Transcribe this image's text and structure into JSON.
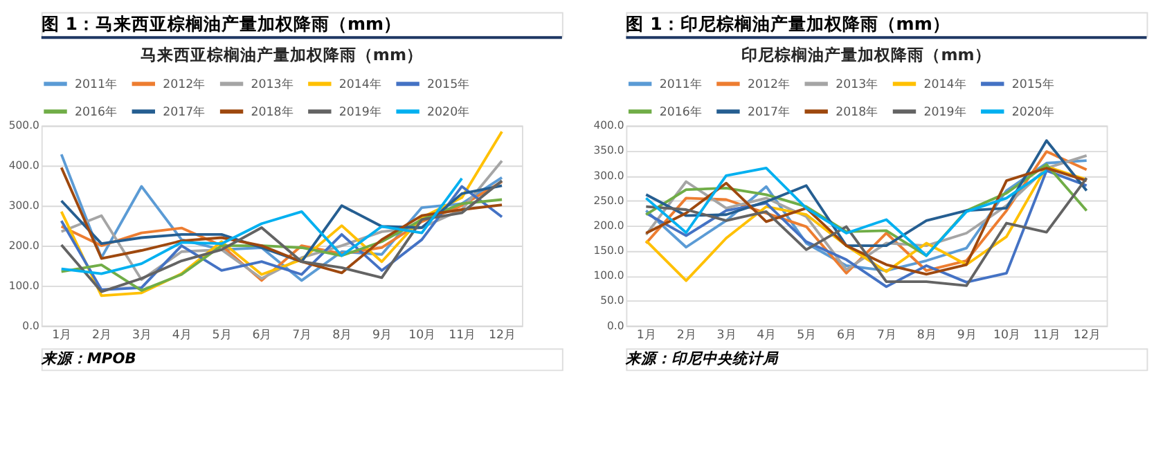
{
  "chart_data": [
    {
      "type": "line",
      "title": "图 1：马来西亚棕榈油产量加权降雨（mm）",
      "subtitle": "马来西亚棕榈油产量加权降雨（mm）",
      "categories": [
        "1月",
        "2月",
        "3月",
        "4月",
        "5月",
        "6月",
        "7月",
        "8月",
        "9月",
        "10月",
        "11月",
        "12月"
      ],
      "ylim": [
        0,
        500
      ],
      "yticks": [
        {
          "value": 0,
          "label": "0.0"
        },
        {
          "value": 100,
          "label": "100.0"
        },
        {
          "value": 200,
          "label": "200.0"
        },
        {
          "value": 300,
          "label": "300.0"
        },
        {
          "value": 400,
          "label": "400.0"
        },
        {
          "value": 500,
          "label": "500.0"
        }
      ],
      "grid": "y",
      "legend": "top",
      "annotations": [
        "来源：MPOB"
      ],
      "series": [
        {
          "name": "2011年",
          "color": "#5b9bd5",
          "values": [
            428,
            170,
            348,
            215,
            190,
            195,
            113,
            185,
            178,
            295,
            305,
            370
          ]
        },
        {
          "name": "2012年",
          "color": "#ed7d31",
          "values": [
            248,
            200,
            232,
            244,
            200,
            113,
            200,
            180,
            195,
            260,
            300,
            360
          ]
        },
        {
          "name": "2013年",
          "color": "#a5a5a5",
          "values": [
            235,
            275,
            115,
            185,
            190,
            118,
            170,
            200,
            235,
            245,
            290,
            412
          ]
        },
        {
          "name": "2014年",
          "color": "#ffc000",
          "values": [
            285,
            75,
            82,
            130,
            210,
            128,
            165,
            250,
            160,
            270,
            320,
            485
          ]
        },
        {
          "name": "2015年",
          "color": "#4472c4",
          "values": [
            262,
            90,
            95,
            200,
            138,
            160,
            128,
            228,
            138,
            215,
            348,
            272
          ]
        },
        {
          "name": "2016年",
          "color": "#70ad47",
          "values": [
            135,
            152,
            88,
            128,
            200,
            200,
            195,
            175,
            210,
            265,
            305,
            315
          ]
        },
        {
          "name": "2017年",
          "color": "#255e91",
          "values": [
            312,
            205,
            220,
            228,
            228,
            195,
            160,
            300,
            248,
            245,
            330,
            350
          ]
        },
        {
          "name": "2018年",
          "color": "#9e480e",
          "values": [
            395,
            168,
            188,
            212,
            220,
            200,
            160,
            132,
            215,
            275,
            290,
            302
          ]
        },
        {
          "name": "2019年",
          "color": "#636363",
          "values": [
            202,
            85,
            118,
            162,
            190,
            245,
            160,
            145,
            120,
            265,
            282,
            362
          ]
        },
        {
          "name": "2020年",
          "color": "#00b0f0",
          "values": [
            142,
            130,
            155,
            208,
            205,
            255,
            285,
            175,
            248,
            232,
            368,
            null
          ]
        }
      ]
    },
    {
      "type": "line",
      "title": "图 1：印尼棕榈油产量加权降雨（mm）",
      "subtitle": "印尼棕榈油产量加权降雨（mm）",
      "categories": [
        "1月",
        "2月",
        "3月",
        "4月",
        "5月",
        "6月",
        "7月",
        "8月",
        "9月",
        "10月",
        "11月",
        "12月"
      ],
      "ylim": [
        0,
        400
      ],
      "yticks": [
        {
          "value": 0,
          "label": "0.0"
        },
        {
          "value": 50,
          "label": "50.0"
        },
        {
          "value": 100,
          "label": "100.0"
        },
        {
          "value": 150,
          "label": "150.0"
        },
        {
          "value": 200,
          "label": "200.0"
        },
        {
          "value": 250,
          "label": "250.0"
        },
        {
          "value": 300,
          "label": "300.0"
        },
        {
          "value": 350,
          "label": "350.0"
        },
        {
          "value": 400,
          "label": "400.0"
        }
      ],
      "grid": "y",
      "legend": "top",
      "annotations": [
        "来源：印尼中央统计局"
      ],
      "series": [
        {
          "name": "2011年",
          "color": "#5b9bd5",
          "values": [
            230,
            157,
            210,
            278,
            165,
            120,
            110,
            130,
            155,
            270,
            325,
            330
          ]
        },
        {
          "name": "2012年",
          "color": "#ed7d31",
          "values": [
            165,
            255,
            252,
            225,
            198,
            105,
            185,
            110,
            130,
            230,
            348,
            312
          ]
        },
        {
          "name": "2013年",
          "color": "#a5a5a5",
          "values": [
            182,
            288,
            235,
            255,
            218,
            112,
            165,
            160,
            185,
            240,
            315,
            340
          ]
        },
        {
          "name": "2014年",
          "color": "#ffc000",
          "values": [
            170,
            90,
            175,
            238,
            222,
            160,
            108,
            165,
            122,
            178,
            318,
            292
          ]
        },
        {
          "name": "2015年",
          "color": "#4472c4",
          "values": [
            225,
            180,
            230,
            245,
            168,
            132,
            78,
            120,
            87,
            105,
            310,
            280
          ]
        },
        {
          "name": "2016年",
          "color": "#70ad47",
          "values": [
            222,
            272,
            275,
            262,
            238,
            188,
            190,
            140,
            230,
            265,
            322,
            230
          ]
        },
        {
          "name": "2017年",
          "color": "#255e91",
          "values": [
            262,
            220,
            222,
            248,
            280,
            160,
            160,
            210,
            230,
            235,
            370,
            270
          ]
        },
        {
          "name": "2018年",
          "color": "#9e480e",
          "values": [
            185,
            225,
            285,
            208,
            235,
            160,
            122,
            103,
            122,
            290,
            315,
            290
          ]
        },
        {
          "name": "2019年",
          "color": "#636363",
          "values": [
            238,
            232,
            210,
            228,
            152,
            198,
            88,
            88,
            80,
            205,
            187,
            295
          ]
        },
        {
          "name": "2020年",
          "color": "#00b0f0",
          "values": [
            255,
            186,
            300,
            315,
            235,
            185,
            212,
            140,
            228,
            255,
            310,
            null
          ]
        }
      ]
    }
  ]
}
